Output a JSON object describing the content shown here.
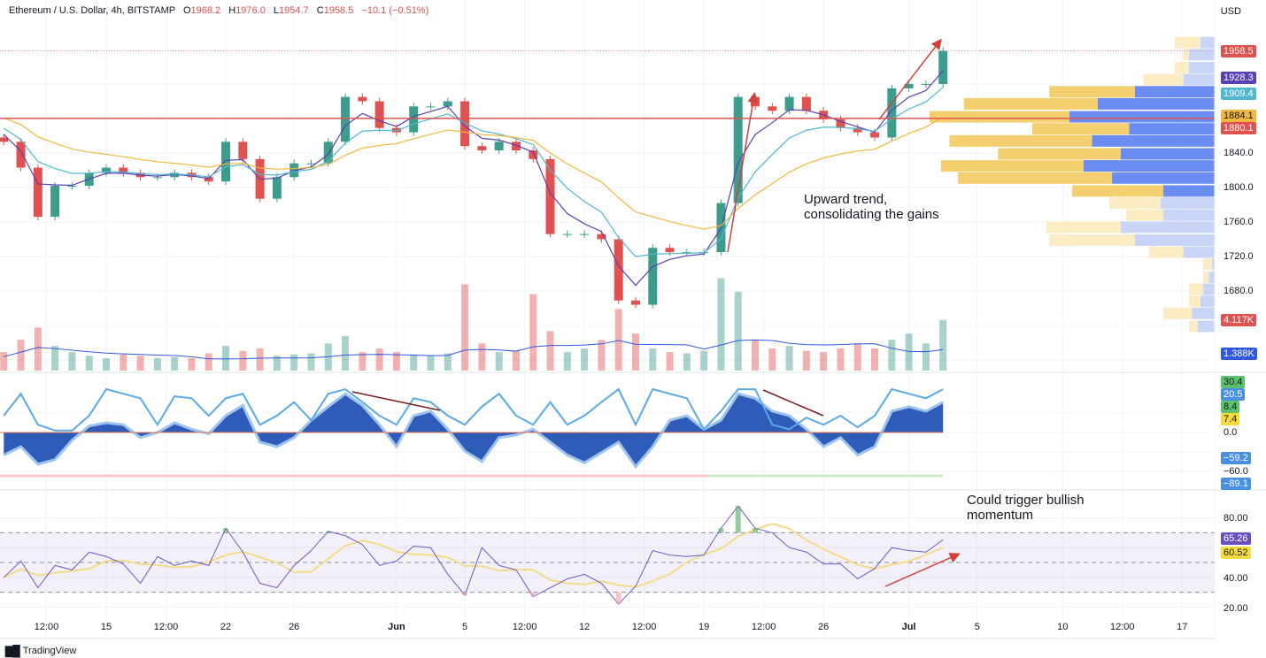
{
  "header": {
    "symbol": "Ethereum / U.S. Dollar, 4h, BITSTAMP",
    "open_label": "O",
    "open": "1968.2",
    "high_label": "H",
    "high": "1976.0",
    "low_label": "L",
    "low": "1954.7",
    "close_label": "C",
    "close": "1958.5",
    "change": "−10.1 (−0.51%)"
  },
  "currency": "USD",
  "colors": {
    "up": "#3d9c8c",
    "down": "#e0524f",
    "ema_fast": "#5b3fb5",
    "ema_mid": "#4fb8d0",
    "ema_slow": "#f2b73d",
    "resistance": "#e0524f",
    "rsi": "#6a5acd",
    "rsi_ma": "#f2dc8a",
    "wave": "#2f5cb8",
    "wave_line": "#5aa9e6",
    "money_flow": "#f5e33c"
  },
  "price_axis": {
    "ticks": [
      "1840.0",
      "1800.0",
      "1760.0",
      "1720.0",
      "1680.0"
    ],
    "labels": {
      "last_price": "1958.5",
      "ema_fast": "1928.3",
      "ema_mid": "1909.4",
      "ema_slow": "1884.1",
      "resistance": "1880.1",
      "volume": "4.117K",
      "volume_ma": "1.388K"
    }
  },
  "oscillator_axis": {
    "labels": [
      "30.4",
      "20.5",
      "8.4",
      "7.4",
      "0.0",
      "−59.2",
      "−60.0",
      "−89.1"
    ]
  },
  "rsi_axis": {
    "ticks": [
      "80.00",
      "40.00",
      "20.00"
    ],
    "labels": {
      "rsi": "65.26",
      "rsi_ma": "60.52"
    }
  },
  "time_axis": [
    {
      "label": "12:00",
      "date": "2023-05-11T12:00"
    },
    {
      "label": "15",
      "date": "2023-05-15T00:00"
    },
    {
      "label": "12:00",
      "date": "2023-05-18T12:00"
    },
    {
      "label": "22",
      "date": "2023-05-22T00:00"
    },
    {
      "label": "26",
      "date": "2023-05-26T00:00"
    },
    {
      "label": "Jun",
      "date": "2023-06-01T00:00",
      "bold": true
    },
    {
      "label": "5",
      "date": "2023-06-05T00:00"
    },
    {
      "label": "12:00",
      "date": "2023-06-08T12:00"
    },
    {
      "label": "12",
      "date": "2023-06-12T00:00"
    },
    {
      "label": "12:00",
      "date": "2023-06-15T12:00"
    },
    {
      "label": "19",
      "date": "2023-06-19T00:00"
    },
    {
      "label": "12:00",
      "date": "2023-06-22T12:00"
    },
    {
      "label": "26",
      "date": "2023-06-26T00:00"
    },
    {
      "label": "Jul",
      "date": "2023-07-01T00:00",
      "bold": true
    },
    {
      "label": "5",
      "date": "2023-07-05T00:00"
    },
    {
      "label": "10",
      "date": "2023-07-10T00:00"
    },
    {
      "label": "12:00",
      "date": "2023-07-13T12:00"
    },
    {
      "label": "17",
      "date": "2023-07-17T00:00"
    }
  ],
  "annotations": {
    "trend_note": "Upward trend,\nconsolidating the gains",
    "momentum_note": "Could trigger bullish\nmomentum"
  },
  "branding": "TradingView",
  "chart_data": [
    {
      "type": "candlestick",
      "name": "price",
      "resistance_level": 1880.1,
      "last_price": 1958.5,
      "ylim": [
        1600,
        1990
      ],
      "x": [
        "2023-05-09",
        "2023-05-10",
        "2023-05-11",
        "2023-05-12",
        "2023-05-13",
        "2023-05-14",
        "2023-05-15",
        "2023-05-16",
        "2023-05-17",
        "2023-05-18",
        "2023-05-19",
        "2023-05-20",
        "2023-05-21",
        "2023-05-22",
        "2023-05-23",
        "2023-05-24",
        "2023-05-25",
        "2023-05-26",
        "2023-05-27",
        "2023-05-28",
        "2023-05-29",
        "2023-05-30",
        "2023-05-31",
        "2023-06-01",
        "2023-06-02",
        "2023-06-03",
        "2023-06-04",
        "2023-06-05",
        "2023-06-06",
        "2023-06-07",
        "2023-06-08",
        "2023-06-09",
        "2023-06-10",
        "2023-06-11",
        "2023-06-12",
        "2023-06-13",
        "2023-06-14",
        "2023-06-15",
        "2023-06-16",
        "2023-06-17",
        "2023-06-18",
        "2023-06-19",
        "2023-06-20",
        "2023-06-21",
        "2023-06-22",
        "2023-06-23",
        "2023-06-24",
        "2023-06-25",
        "2023-06-26",
        "2023-06-27",
        "2023-06-28",
        "2023-06-29",
        "2023-06-30",
        "2023-07-01",
        "2023-07-02",
        "2023-07-03"
      ],
      "close": [
        1853,
        1823,
        1766,
        1802,
        1802,
        1817,
        1823,
        1817,
        1812,
        1812,
        1817,
        1812,
        1807,
        1853,
        1833,
        1787,
        1812,
        1828,
        1828,
        1853,
        1905,
        1900,
        1869,
        1864,
        1894,
        1894,
        1900,
        1848,
        1843,
        1853,
        1843,
        1833,
        1746,
        1746,
        1746,
        1740,
        1669,
        1664,
        1730,
        1725,
        1725,
        1725,
        1782,
        1905,
        1894,
        1889,
        1905,
        1889,
        1879,
        1869,
        1864,
        1858,
        1915,
        1920,
        1920,
        1958.5
      ],
      "volume_k": [
        1.5,
        2.5,
        3.5,
        2,
        1.5,
        1.2,
        1,
        1.3,
        1.2,
        1,
        1.1,
        1,
        1.4,
        2,
        1.6,
        1.8,
        1.2,
        1.3,
        1.4,
        2.2,
        2.8,
        1.5,
        1.8,
        1.5,
        1.3,
        1.2,
        1.4,
        7.0,
        2.2,
        1.5,
        1.6,
        6.2,
        3.2,
        1.5,
        1.8,
        2.5,
        5.0,
        3.0,
        1.8,
        1.5,
        1.4,
        1.6,
        7.5,
        6.4,
        2.5,
        1.8,
        2.0,
        1.6,
        1.5,
        1.8,
        2.2,
        1.8,
        2.5,
        3.0,
        2.2,
        4.117
      ]
    },
    {
      "type": "bar",
      "name": "volume_profile",
      "price_levels": [
        1968,
        1954,
        1939,
        1925,
        1911,
        1897,
        1882,
        1868,
        1854,
        1839,
        1825,
        1811,
        1796,
        1782,
        1768,
        1754,
        1739,
        1725,
        1711,
        1696,
        1682,
        1668,
        1654,
        1639
      ],
      "up_volume_pct": [
        5,
        9,
        9,
        11,
        28,
        41,
        51,
        30,
        43,
        33,
        46,
        36,
        18,
        19,
        18,
        33,
        28,
        11,
        1,
        2,
        4,
        5,
        8,
        6
      ],
      "down_volume_pct": [
        9,
        2,
        5,
        14,
        30,
        47,
        49,
        34,
        50,
        43,
        50,
        54,
        32,
        18,
        13,
        26,
        30,
        12,
        3,
        2,
        5,
        4,
        10,
        3
      ],
      "value_area": [
        1796,
        1911
      ]
    },
    {
      "type": "area",
      "name": "wave_oscillator",
      "ylim": [
        -95,
        75
      ],
      "wave": [
        -35,
        -22,
        -49,
        -42,
        -12,
        10,
        15,
        12,
        -8,
        0,
        15,
        5,
        -2,
        26,
        42,
        -15,
        -22,
        -8,
        19,
        40,
        60,
        42,
        12,
        -22,
        26,
        33,
        5,
        -29,
        -45,
        -8,
        -4,
        5,
        -15,
        -35,
        -47,
        -31,
        -15,
        -53,
        -22,
        19,
        26,
        5,
        19,
        60,
        53,
        33,
        26,
        5,
        -22,
        -8,
        -35,
        -22,
        33,
        40,
        33,
        47
      ],
      "signal_line": [
        26,
        60,
        12,
        3,
        3,
        26,
        67,
        60,
        53,
        12,
        56,
        53,
        26,
        53,
        60,
        12,
        26,
        47,
        19,
        60,
        67,
        47,
        26,
        12,
        53,
        47,
        26,
        12,
        40,
        60,
        26,
        12,
        47,
        12,
        26,
        47,
        67,
        12,
        67,
        60,
        53,
        5,
        33,
        67,
        67,
        12,
        5,
        23,
        12,
        26,
        8,
        26,
        67,
        60,
        53,
        67
      ]
    },
    {
      "type": "line",
      "name": "rsi",
      "ylim": [
        15,
        95
      ],
      "bands": [
        30,
        50,
        70
      ],
      "values": [
        40,
        51,
        33,
        48,
        45,
        57,
        54,
        49,
        36,
        54,
        48,
        51,
        48,
        73,
        57,
        36,
        33,
        48,
        58,
        71,
        68,
        62,
        48,
        51,
        61,
        60,
        42,
        28,
        60,
        48,
        45,
        27,
        33,
        39,
        42,
        36,
        22,
        34,
        58,
        55,
        54,
        55,
        73,
        88,
        73,
        70,
        60,
        57,
        49,
        49,
        39,
        46,
        60,
        58,
        57,
        65.26
      ]
    }
  ]
}
